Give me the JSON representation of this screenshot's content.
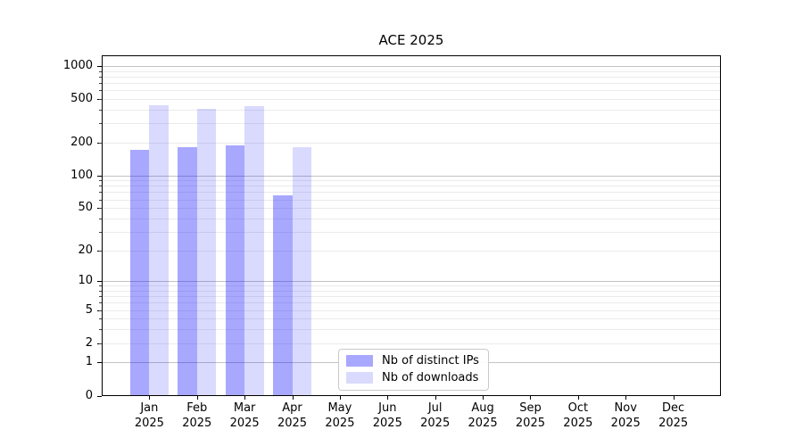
{
  "title": "ACE 2025",
  "colors": {
    "ips_bar": "rgba(0,0,255,0.34)",
    "downloads_bar": "rgba(0,0,255,0.145)",
    "major_grid": "#c3c3c3",
    "minor_grid": "#ebebeb",
    "axis": "#000000"
  },
  "legend": {
    "items": [
      {
        "label": "Nb of distinct IPs",
        "color": "rgba(0,0,255,0.34)"
      },
      {
        "label": "Nb of downloads",
        "color": "rgba(0,0,255,0.145)"
      }
    ]
  },
  "x_axis": {
    "months": [
      "Jan",
      "Feb",
      "Mar",
      "Apr",
      "May",
      "Jun",
      "Jul",
      "Aug",
      "Sep",
      "Oct",
      "Nov",
      "Dec"
    ],
    "year": "2025"
  },
  "y_axis": {
    "ticks": [
      0,
      1,
      2,
      5,
      10,
      20,
      50,
      100,
      200,
      500,
      1000
    ]
  },
  "chart_data": {
    "type": "bar",
    "title": "ACE 2025",
    "categories": [
      "Jan 2025",
      "Feb 2025",
      "Mar 2025",
      "Apr 2025",
      "May 2025",
      "Jun 2025",
      "Jul 2025",
      "Aug 2025",
      "Sep 2025",
      "Oct 2025",
      "Nov 2025",
      "Dec 2025"
    ],
    "series": [
      {
        "name": "Nb of distinct IPs",
        "values": [
          170,
          180,
          190,
          66,
          null,
          null,
          null,
          null,
          null,
          null,
          null,
          null
        ]
      },
      {
        "name": "Nb of downloads",
        "values": [
          440,
          405,
          430,
          181,
          null,
          null,
          null,
          null,
          null,
          null,
          null,
          null
        ]
      }
    ],
    "xlabel": "",
    "ylabel": "",
    "yscale": "symlog (position proportional to ln(1+value))",
    "yticks": [
      0,
      1,
      2,
      5,
      10,
      20,
      50,
      100,
      200,
      500,
      1000
    ],
    "ylim": [
      0,
      1250
    ],
    "grid": "horizontal, major at powers of 10, minor at 2-9 per decade",
    "legend_position": "lower center"
  }
}
